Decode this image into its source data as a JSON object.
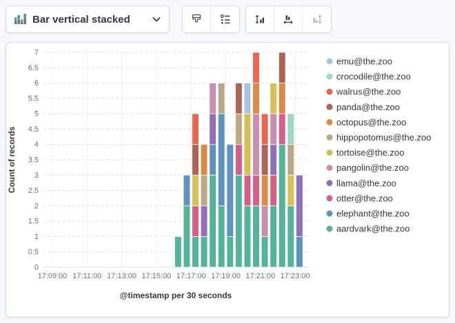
{
  "toolbar": {
    "chart_type": {
      "label": "Bar vertical stacked",
      "icon": "bar-vertical-stacked-icon"
    },
    "groups": [
      {
        "name": "style-group",
        "buttons": [
          {
            "name": "chart-style-button",
            "icon": "paint-brush-icon",
            "disabled": false
          },
          {
            "name": "legend-settings-button",
            "icon": "legend-list-icon",
            "disabled": false
          }
        ]
      },
      {
        "name": "axes-group",
        "buttons": [
          {
            "name": "left-axis-button",
            "icon": "swap-y-axis-icon",
            "disabled": false
          },
          {
            "name": "bottom-axis-button",
            "icon": "swap-x-axis-icon",
            "disabled": false
          },
          {
            "name": "right-axis-button",
            "icon": "swap-axes-icon",
            "disabled": true
          }
        ]
      }
    ]
  },
  "chart_data": {
    "type": "bar",
    "stacked": true,
    "ylabel": "Count of records",
    "xlabel": "@timestamp per 30 seconds",
    "ylim": [
      0,
      7
    ],
    "y_tick_step": 0.5,
    "x_start": "17:09:00",
    "x_ticks": [
      "17:09:00",
      "17:11:00",
      "17:13:00",
      "17:15:00",
      "17:17:00",
      "17:19:00",
      "17:21:00",
      "17:23:00"
    ],
    "bucket_seconds": 30,
    "grid": {
      "horizontal": "dashed",
      "vertical": true
    },
    "legend_position": "right",
    "buckets": [
      "17:16:00",
      "17:16:30",
      "17:17:00",
      "17:17:30",
      "17:18:00",
      "17:18:30",
      "17:19:00",
      "17:19:30",
      "17:20:00",
      "17:20:30",
      "17:21:00",
      "17:21:30",
      "17:22:00",
      "17:22:30",
      "17:23:00"
    ],
    "series": [
      {
        "name": "aardvark@the.zoo",
        "color": "#54B399",
        "values": [
          1,
          2,
          1,
          1,
          3,
          2,
          1,
          3,
          2,
          2,
          1,
          2,
          4,
          2,
          0
        ]
      },
      {
        "name": "elephant@the.zoo",
        "color": "#6092C0",
        "values": [
          0,
          1,
          0,
          0,
          1,
          3,
          3,
          0,
          0,
          0,
          0,
          0,
          0,
          0,
          1
        ]
      },
      {
        "name": "otter@the.zoo",
        "color": "#D36086",
        "values": [
          0,
          0,
          1,
          0,
          0,
          0,
          0,
          1,
          1,
          1,
          0,
          1,
          1,
          0,
          0
        ]
      },
      {
        "name": "llama@the.zoo",
        "color": "#9170B8",
        "values": [
          0,
          0,
          0,
          1,
          1,
          0,
          0,
          0,
          0,
          0,
          0,
          1,
          0,
          0,
          2
        ]
      },
      {
        "name": "pangolin@the.zoo",
        "color": "#CA8EAE",
        "values": [
          0,
          0,
          0,
          0,
          1,
          0,
          0,
          0,
          0,
          2,
          1,
          1,
          0,
          0,
          0
        ]
      },
      {
        "name": "tortoise@the.zoo",
        "color": "#D6BF57",
        "values": [
          0,
          0,
          1,
          0,
          0,
          0,
          0,
          0,
          2,
          0,
          0,
          1,
          0,
          1,
          0
        ]
      },
      {
        "name": "hippopotomus@the.zoo",
        "color": "#B9A888",
        "values": [
          0,
          0,
          0,
          1,
          0,
          1,
          0,
          1,
          0,
          0,
          0,
          0,
          0,
          1,
          0
        ]
      },
      {
        "name": "octopus@the.zoo",
        "color": "#DA8B45",
        "values": [
          0,
          0,
          0,
          1,
          0,
          0,
          0,
          0,
          0,
          1,
          1,
          0,
          1,
          0,
          0
        ]
      },
      {
        "name": "panda@the.zoo",
        "color": "#AA6556",
        "values": [
          0,
          0,
          1,
          0,
          0,
          0,
          0,
          1,
          0,
          0,
          1,
          0,
          1,
          0,
          0
        ]
      },
      {
        "name": "walrus@the.zoo",
        "color": "#E7664C",
        "values": [
          0,
          0,
          1,
          0,
          0,
          0,
          0,
          0,
          0,
          1,
          1,
          0,
          0,
          0,
          0
        ]
      },
      {
        "name": "crocodile@the.zoo",
        "color": "#9ED8C3",
        "values": [
          0,
          0,
          0,
          0,
          0,
          0,
          0,
          0,
          0,
          0,
          0,
          0,
          0,
          1,
          0
        ]
      },
      {
        "name": "emu@the.zoo",
        "color": "#A7C6DE",
        "values": [
          0,
          0,
          0,
          0,
          0,
          0,
          0,
          0,
          1,
          0,
          0,
          0,
          0,
          0,
          0
        ]
      }
    ],
    "colors": {
      "axis_text": "#69707D",
      "axis_title": "#343741",
      "legend_text": "#343741",
      "grid_dashed": "#dcdfe5",
      "grid_vertical": "#eef0f4",
      "baseline": "#d3dae6"
    }
  }
}
